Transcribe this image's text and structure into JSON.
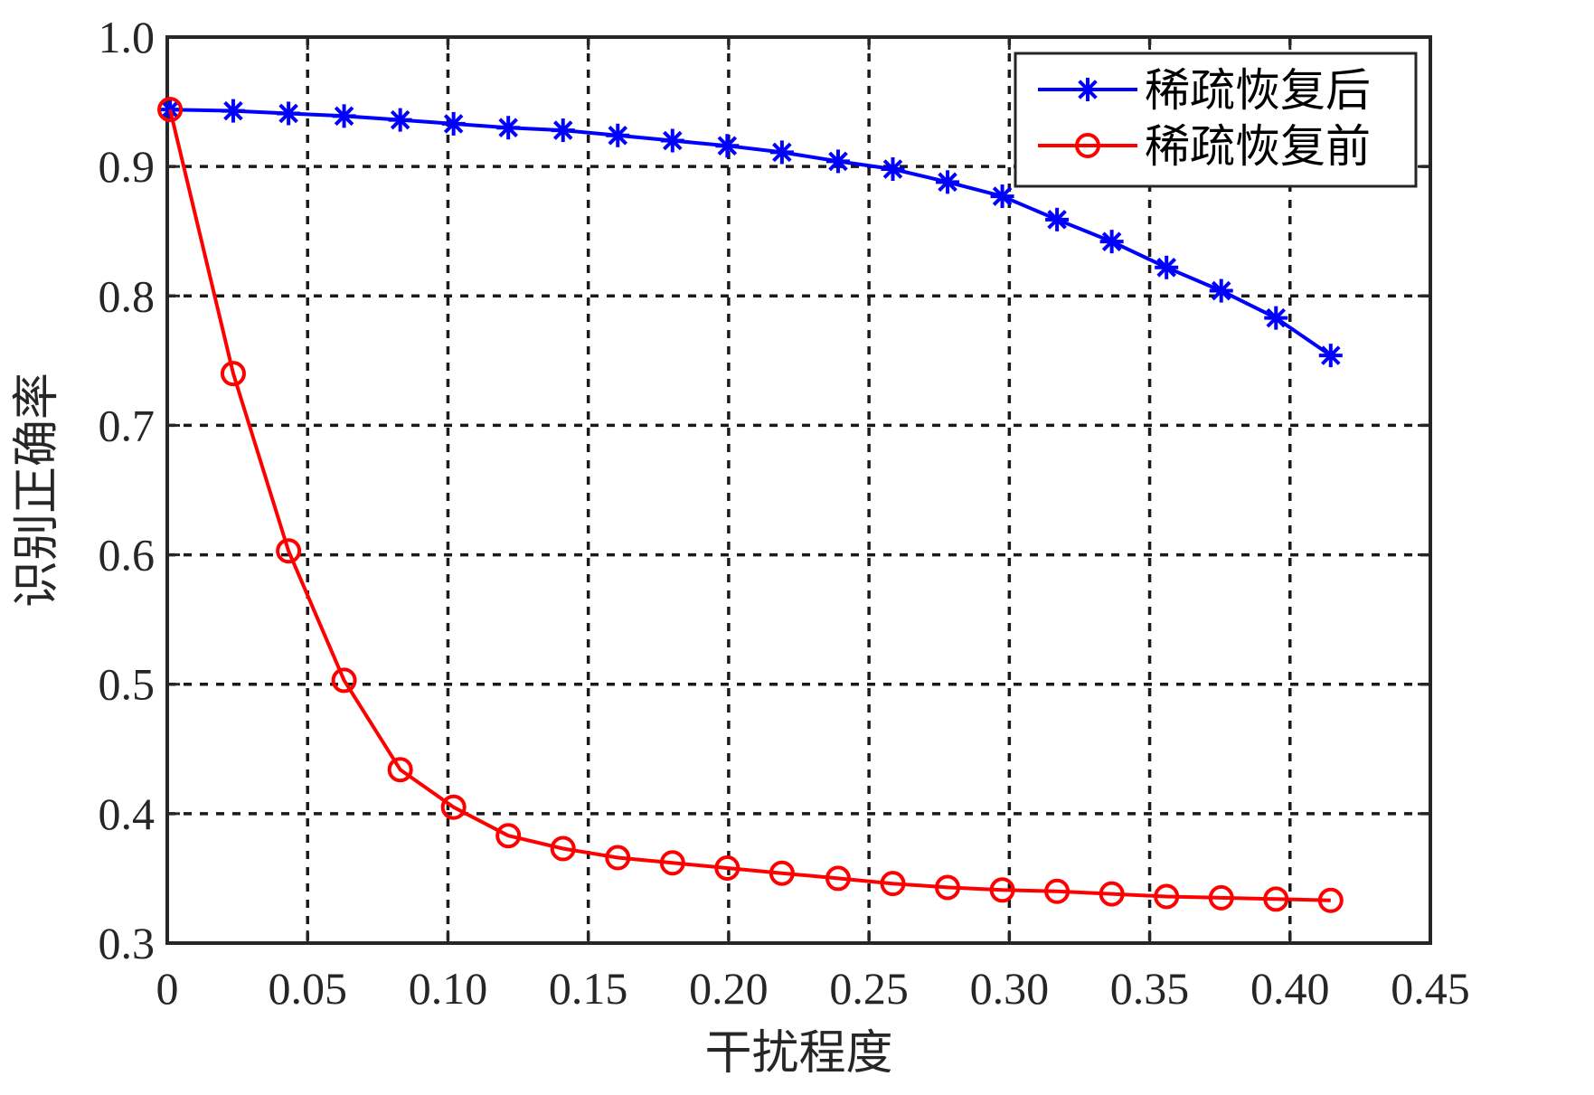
{
  "chart_data": {
    "type": "line",
    "title": "",
    "xlabel": "干扰程度",
    "ylabel": "识别正确率",
    "xlim": [
      0,
      0.45
    ],
    "ylim": [
      0.3,
      1.0
    ],
    "x_ticks": [
      0,
      0.05,
      0.1,
      0.15,
      0.2,
      0.25,
      0.3,
      0.35,
      0.4,
      0.45
    ],
    "x_tick_labels": [
      "0",
      "0.05",
      "0.10",
      "0.15",
      "0.20",
      "0.25",
      "0.30",
      "0.35",
      "0.40",
      "0.45"
    ],
    "y_ticks": [
      0.3,
      0.4,
      0.5,
      0.6,
      0.7,
      0.8,
      0.9,
      1.0
    ],
    "y_tick_labels": [
      "0.3",
      "0.4",
      "0.5",
      "0.6",
      "0.7",
      "0.8",
      "0.9",
      "1.0"
    ],
    "grid": true,
    "legend_position": "top-right",
    "series": [
      {
        "name": "稀疏恢复后",
        "color": "#0000ff",
        "marker": "asterisk",
        "x": [
          0.001,
          0.0235,
          0.0432,
          0.063,
          0.083,
          0.102,
          0.1215,
          0.141,
          0.1605,
          0.18,
          0.1995,
          0.219,
          0.239,
          0.2585,
          0.278,
          0.2975,
          0.317,
          0.3365,
          0.356,
          0.3755,
          0.395,
          0.4145
        ],
        "values": [
          0.944,
          0.943,
          0.941,
          0.939,
          0.936,
          0.933,
          0.93,
          0.928,
          0.924,
          0.92,
          0.916,
          0.911,
          0.904,
          0.898,
          0.888,
          0.877,
          0.859,
          0.842,
          0.822,
          0.804,
          0.783,
          0.754
        ]
      },
      {
        "name": "稀疏恢复前",
        "color": "#ff0000",
        "marker": "circle",
        "x": [
          0.001,
          0.0235,
          0.0432,
          0.063,
          0.083,
          0.102,
          0.1215,
          0.141,
          0.1605,
          0.18,
          0.1995,
          0.219,
          0.239,
          0.2585,
          0.278,
          0.2975,
          0.317,
          0.3365,
          0.356,
          0.3755,
          0.395,
          0.4145
        ],
        "values": [
          0.944,
          0.74,
          0.603,
          0.503,
          0.434,
          0.405,
          0.383,
          0.373,
          0.366,
          0.362,
          0.358,
          0.354,
          0.35,
          0.346,
          0.343,
          0.341,
          0.34,
          0.338,
          0.336,
          0.335,
          0.334,
          0.333
        ]
      }
    ]
  }
}
